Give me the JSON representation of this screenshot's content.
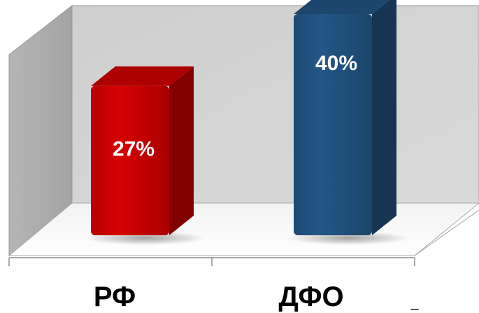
{
  "chart_data": {
    "type": "bar",
    "style": "3d-column",
    "categories": [
      "РФ",
      "ДФО"
    ],
    "values": [
      27,
      40
    ],
    "data_labels": [
      "27%",
      "40%"
    ],
    "colors": [
      "#c00000",
      "#1f4e79"
    ],
    "ylim": [
      0,
      50
    ],
    "grid": false,
    "legend": "none"
  },
  "footnote_mark": "–"
}
